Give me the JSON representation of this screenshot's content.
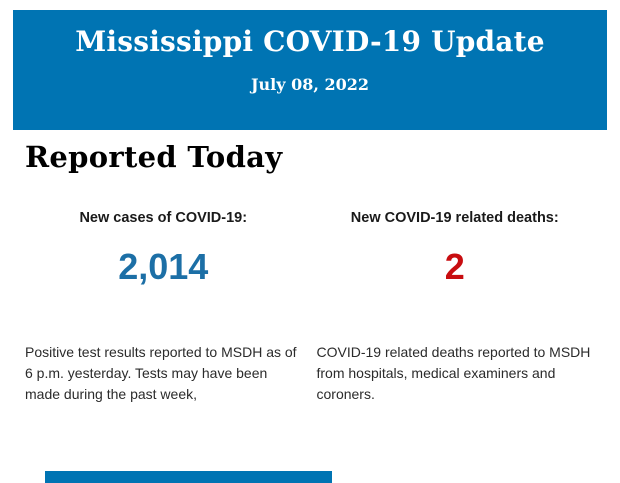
{
  "colors": {
    "banner_blue": "#0074B3",
    "cases_blue": "#1C6FA6",
    "deaths_red": "#C80D10"
  },
  "header": {
    "title": "Mississippi COVID-19 Update",
    "date": "July 08, 2022"
  },
  "section": {
    "heading": "Reported Today"
  },
  "stats": [
    {
      "label": "New cases of COVID-19:",
      "value": "2,014",
      "value_color": "#1C6FA6",
      "description": "Positive test results reported to MSDH as of 6 p.m. yesterday. Tests may have been made during the past week,"
    },
    {
      "label": "New COVID-19 related deaths:",
      "value": "2",
      "value_color": "#C80D10",
      "description": "COVID-19 related deaths reported to MSDH from hospitals, medical examiners and coroners."
    }
  ]
}
